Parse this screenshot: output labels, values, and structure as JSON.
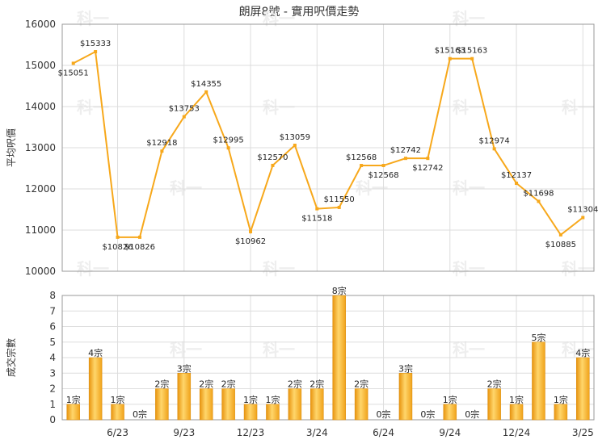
{
  "chart_data": [
    {
      "type": "line",
      "title": "朗屏8號 - 實用呎價走勢",
      "ylabel": "平均呎價",
      "ylim": [
        10000,
        16000
      ],
      "yticks": [
        10000,
        11000,
        12000,
        13000,
        14000,
        15000,
        16000
      ],
      "color": "#f7a81b",
      "series": [
        {
          "values": [
            15051,
            15333,
            10826,
            10826,
            12918,
            13753,
            14355,
            12995,
            10962,
            12570,
            13059,
            11518,
            11550,
            12568,
            12568,
            12742,
            12742,
            15163,
            15163,
            12974,
            12137,
            11698,
            10885,
            11304
          ],
          "labels": [
            "$15051",
            "$15333",
            "$10826",
            "$10826",
            "$12918",
            "$13753",
            "$14355",
            "$12995",
            "$10962",
            "$12570",
            "$13059",
            "$11518",
            "$11550",
            "$12568",
            "$12568",
            "$12742",
            "$12742",
            "$15163",
            "$15163",
            "$12974",
            "$12137",
            "$11698",
            "$10885",
            "$11304"
          ]
        }
      ]
    },
    {
      "type": "bar",
      "ylabel": "成交宗數",
      "ylim": [
        0,
        8
      ],
      "yticks": [
        0,
        1,
        2,
        3,
        4,
        5,
        6,
        7,
        8
      ],
      "color": "#f5a623",
      "categories_ticks": [
        "6/23",
        "9/23",
        "12/23",
        "3/24",
        "6/24",
        "9/24",
        "12/24",
        "3/25"
      ],
      "values": [
        1,
        4,
        1,
        0,
        2,
        3,
        2,
        2,
        1,
        1,
        2,
        2,
        8,
        2,
        0,
        3,
        0,
        1,
        0,
        2,
        1,
        5,
        1,
        4
      ],
      "labels": [
        "1宗",
        "4宗",
        "1宗",
        "0宗",
        "2宗",
        "3宗",
        "2宗",
        "2宗",
        "1宗",
        "1宗",
        "2宗",
        "2宗",
        "8宗",
        "2宗",
        "0宗",
        "3宗",
        "0宗",
        "1宗",
        "0宗",
        "2宗",
        "1宗",
        "5宗",
        "1宗",
        "4宗"
      ]
    }
  ],
  "watermark": "科一"
}
